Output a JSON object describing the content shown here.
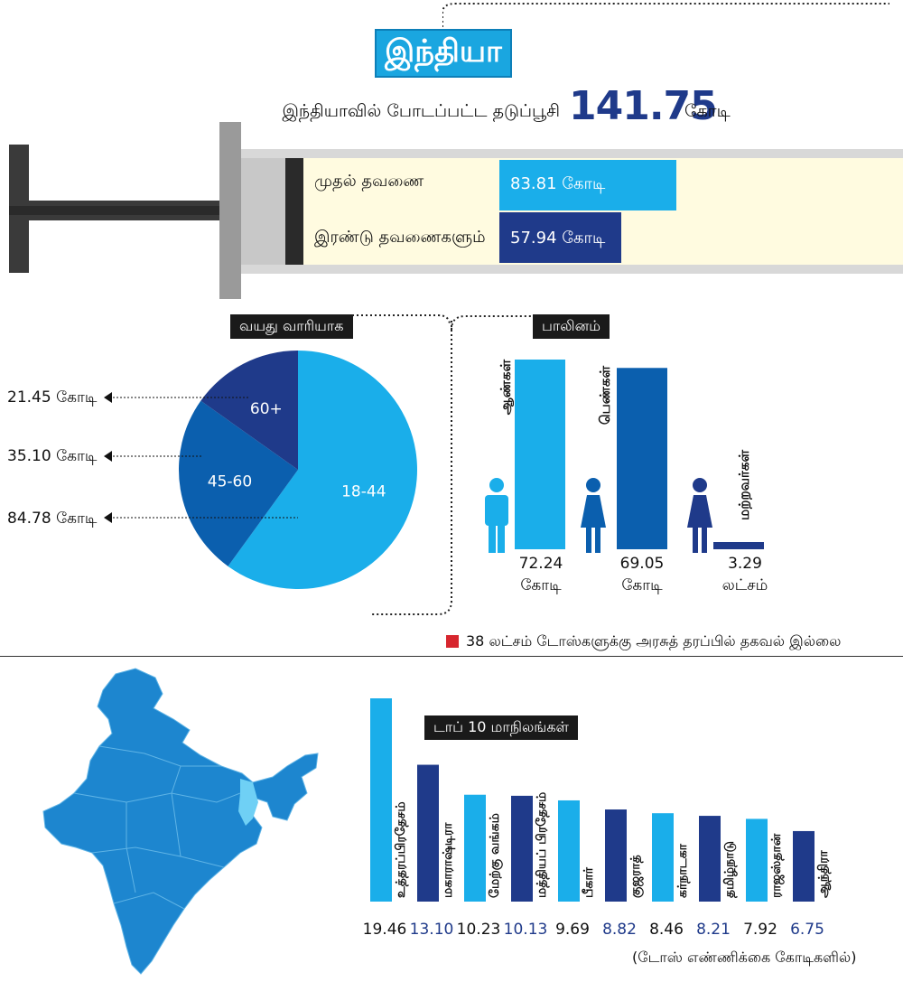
{
  "header": {
    "title": "இந்தியா",
    "total_label": "இந்தியாவில் போடப்பட்ட தடுப்பூசி",
    "total_value": "141.75",
    "total_unit": "கோடி"
  },
  "doses": {
    "first_label": "முதல் தவணை",
    "first_value_text": "83.81 கோடி",
    "first_value": 83.81,
    "second_label": "இரண்டு தவணைகளும்",
    "second_value_text": "57.94 கோடி",
    "second_value": 57.94
  },
  "age": {
    "title": "வயது வாரியாக",
    "items": [
      {
        "group": "60+",
        "value_text": "21.45 கோடி",
        "value": 21.45,
        "color": "#1f3a8a"
      },
      {
        "group": "45-60",
        "value_text": "35.10 கோடி",
        "value": 35.1,
        "color": "#0b5fae"
      },
      {
        "group": "18-44",
        "value_text": "84.78 கோடி",
        "value": 84.78,
        "color": "#1aaeea"
      }
    ]
  },
  "gender": {
    "title": "பாலினம்",
    "items": [
      {
        "label": "ஆண்கள்",
        "value": "72.24",
        "unit": "கோடி",
        "amount": 72.24,
        "color": "#1aaeea"
      },
      {
        "label": "பெண்கள்",
        "value": "69.05",
        "unit": "கோடி",
        "amount": 69.05,
        "color": "#0b5fae"
      },
      {
        "label": "மற்றவர்கள்",
        "value": "3.29",
        "unit": "லட்சம்",
        "amount": 0.0329,
        "color": "#1f3a8a"
      }
    ],
    "note": "38 லட்சம் டோஸ்களுக்கு அரசுத் தரப்பில் தகவல் இல்லை",
    "note_color": "#d7262e"
  },
  "states": {
    "title": "டாப் 10 மாநிலங்கள்",
    "footnote": "(டோஸ் எண்ணிக்கை கோடிகளில்)"
  },
  "chart_data": [
    {
      "type": "bar",
      "categories": [
        "முதல் தவணை",
        "இரண்டு தவணைகளும்"
      ],
      "values": [
        83.81,
        57.94
      ]
    },
    {
      "type": "pie",
      "title": "வயது வாரியாக",
      "categories": [
        "18-44",
        "45-60",
        "60+"
      ],
      "values": [
        84.78,
        35.1,
        21.45
      ]
    },
    {
      "type": "bar",
      "title": "பாலினம்",
      "categories": [
        "ஆண்கள்",
        "பெண்கள்",
        "மற்றவர்கள்"
      ],
      "values": [
        72.24,
        69.05,
        0.0329
      ]
    },
    {
      "type": "bar",
      "title": "டாப் 10 மாநிலங்கள்",
      "categories": [
        "உத்தரப்பிரதேசம்",
        "மகாராஷ்டிரா",
        "மேற்கு வங்கம்",
        "மத்தியப் பிரதேசம்",
        "பீகார்",
        "குஜராத்",
        "கர்நாடகா",
        "தமிழ்நாடு",
        "ராஜஸ்தான்",
        "ஆந்திரா"
      ],
      "values": [
        19.46,
        13.1,
        10.23,
        10.13,
        9.69,
        8.82,
        8.46,
        8.21,
        7.92,
        6.75
      ],
      "value_labels": [
        "19.46",
        "13.10",
        "10.23",
        "10.13",
        "9.69",
        "8.82",
        "8.46",
        "8.21",
        "7.92",
        "6.75"
      ],
      "colors": [
        "#1aaeea",
        "#1f3a8a",
        "#1aaeea",
        "#1f3a8a",
        "#1aaeea",
        "#1f3a8a",
        "#1aaeea",
        "#1f3a8a",
        "#1aaeea",
        "#1f3a8a"
      ]
    }
  ]
}
